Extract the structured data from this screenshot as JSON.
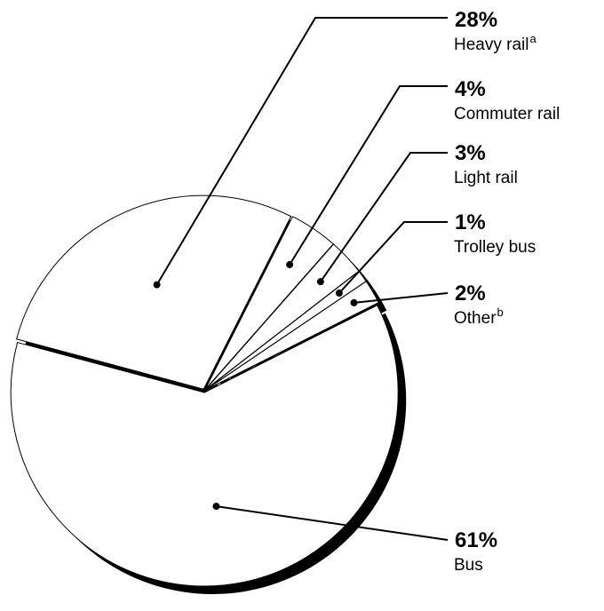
{
  "chart_data": {
    "type": "pie",
    "categories": [
      "Heavy rail",
      "Commuter rail",
      "Light rail",
      "Trolley bus",
      "Other",
      "Bus"
    ],
    "superscripts": [
      "a",
      null,
      null,
      null,
      "b",
      null
    ],
    "values": [
      28,
      4,
      3,
      1,
      2,
      61
    ],
    "value_labels": [
      "28%",
      "4%",
      "3%",
      "1%",
      "2%",
      "61%"
    ],
    "color": "#ffffff",
    "shadow_color": "#000000"
  }
}
